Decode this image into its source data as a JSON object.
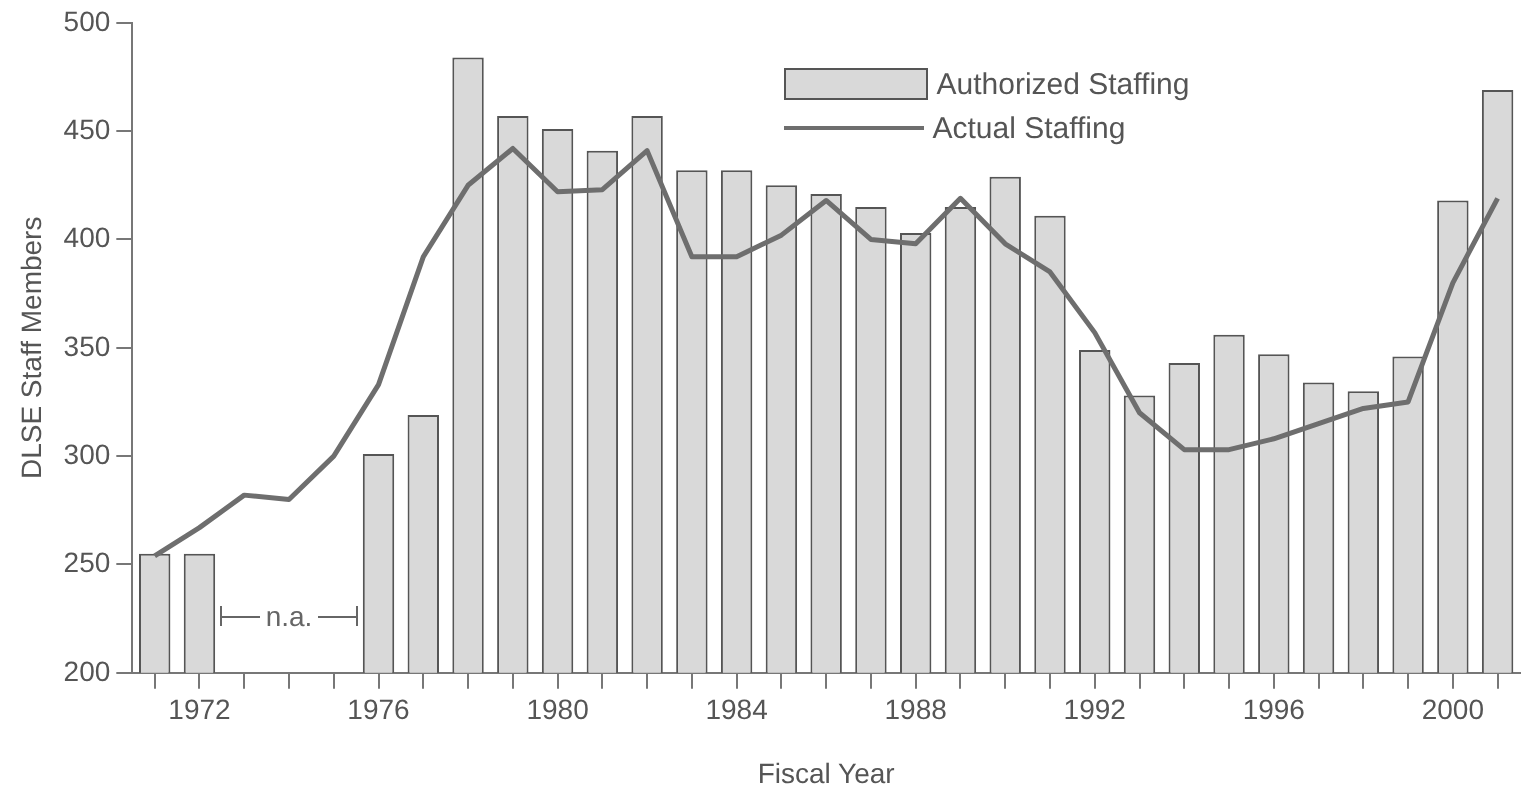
{
  "chart_data": {
    "type": "bar",
    "xlabel": "Fiscal Year",
    "ylabel": "DLSE Staff Members",
    "categories": [
      null,
      "1972",
      null,
      null,
      null,
      "1976",
      null,
      null,
      null,
      "1980",
      null,
      null,
      null,
      "1984",
      null,
      null,
      null,
      "1988",
      null,
      null,
      null,
      "1992",
      null,
      null,
      null,
      "1996",
      null,
      null,
      null,
      "2000",
      null
    ],
    "series": [
      {
        "name": "Authorized Staffing",
        "color": "#d9d9d9",
        "values": [
          255,
          255,
          null,
          null,
          null,
          301,
          319,
          484,
          457,
          451,
          441,
          457,
          432,
          432,
          425,
          421,
          415,
          403,
          415,
          429,
          411,
          349,
          328,
          343,
          356,
          347,
          334,
          330,
          346,
          418,
          469
        ]
      },
      {
        "name": "Actual Staffing",
        "type": "line",
        "color": "#6e6e6e",
        "values": [
          254,
          267,
          282,
          280,
          300,
          333,
          392,
          425,
          442,
          422,
          423,
          441,
          392,
          392,
          402,
          418,
          400,
          398,
          419,
          398,
          385,
          357,
          320,
          303,
          303,
          308,
          315,
          322,
          325,
          380,
          419
        ]
      }
    ],
    "ylim": [
      200,
      500
    ],
    "yticks": [
      200,
      250,
      300,
      350,
      400,
      450,
      500
    ],
    "legend": "top right",
    "marker": "none",
    "annotations": [
      "n.a."
    ]
  }
}
